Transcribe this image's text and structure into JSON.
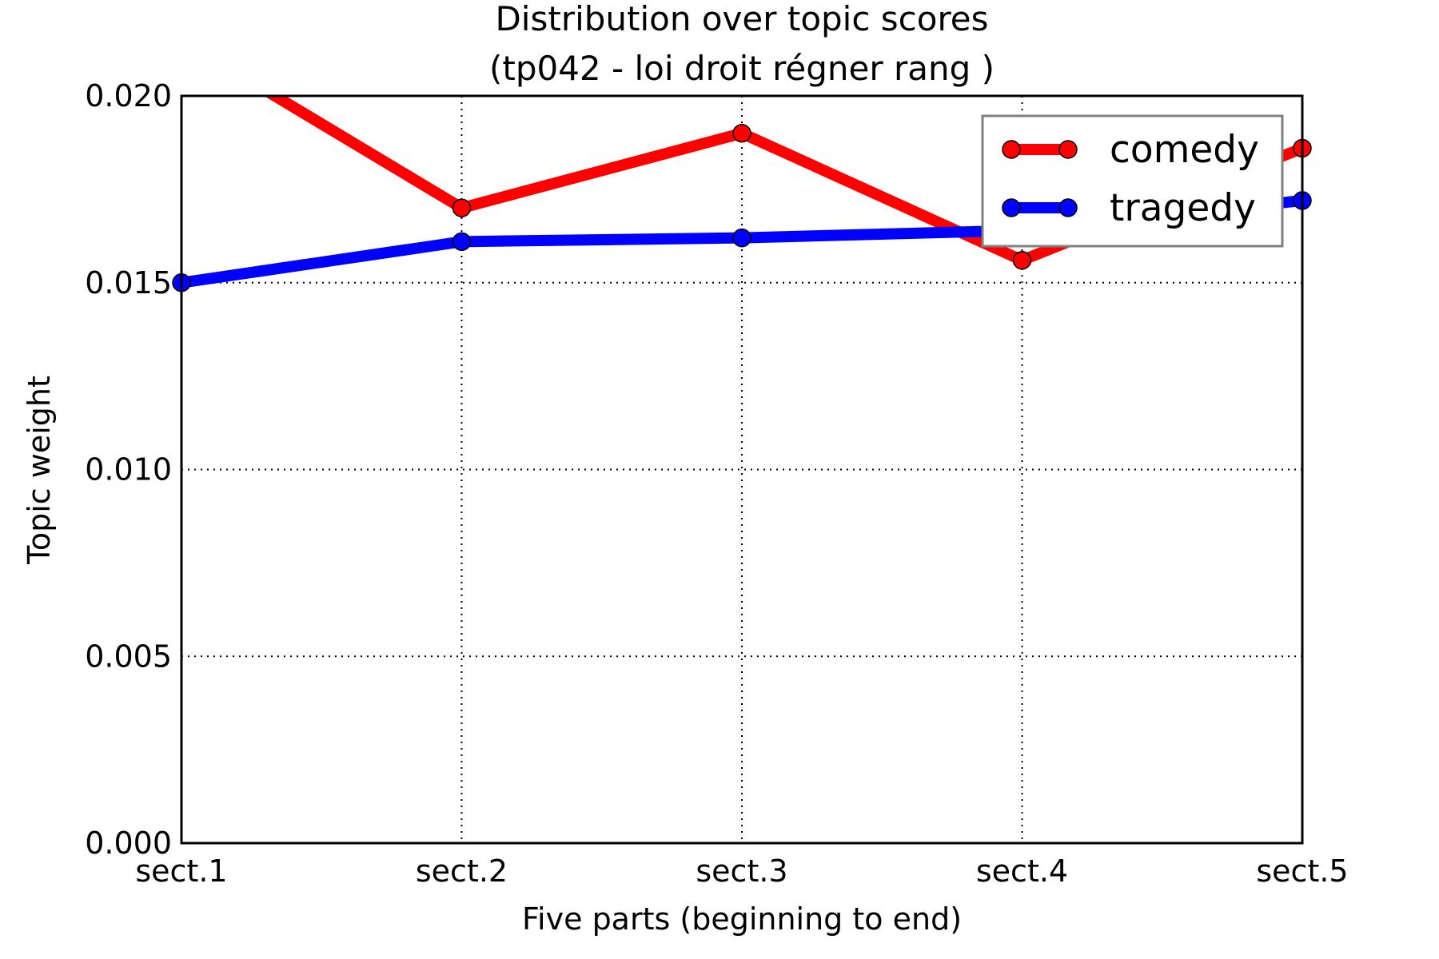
{
  "chart_data": {
    "type": "line",
    "title": "Distribution over topic scores",
    "subtitle": "(tp042 - loi droit régner rang )",
    "xlabel": "Five parts (beginning to end)",
    "ylabel": "Topic weight",
    "categories": [
      "sect.1",
      "sect.2",
      "sect.3",
      "sect.4",
      "sect.5"
    ],
    "ylim": [
      0.0,
      0.02
    ],
    "yticks": [
      "0.000",
      "0.005",
      "0.010",
      "0.015",
      "0.020"
    ],
    "grid": true,
    "legend_position": "top-right",
    "series": [
      {
        "name": "comedy",
        "color": "#ff0000",
        "values": [
          0.0215,
          0.017,
          0.019,
          0.0156,
          0.0186
        ]
      },
      {
        "name": "tragedy",
        "color": "#0000ff",
        "values": [
          0.015,
          0.0161,
          0.0162,
          0.0164,
          0.0172
        ]
      }
    ]
  }
}
